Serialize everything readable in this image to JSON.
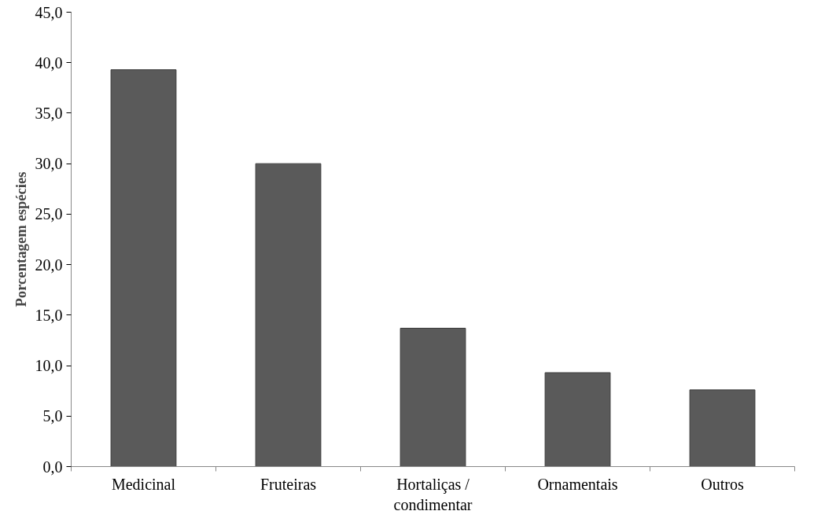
{
  "chart_data": {
    "type": "bar",
    "ylabel": "Porcentagem espécies",
    "categories": [
      "Medicinal",
      "Fruteiras",
      "Hortaliças /\ncondimentar",
      "Ornamentais",
      "Outros"
    ],
    "values": [
      39.3,
      30.0,
      13.7,
      9.3,
      7.6
    ],
    "color": "#5a5a5a",
    "ylim": [
      0,
      45
    ],
    "yticks": [
      {
        "value": 0,
        "label": "0,0"
      },
      {
        "value": 5,
        "label": "5,0"
      },
      {
        "value": 10,
        "label": "10,0"
      },
      {
        "value": 15,
        "label": "15,0"
      },
      {
        "value": 20,
        "label": "20,0"
      },
      {
        "value": 25,
        "label": "25,0"
      },
      {
        "value": 30,
        "label": "30,0"
      },
      {
        "value": 35,
        "label": "35,0"
      },
      {
        "value": 40,
        "label": "40,0"
      },
      {
        "value": 45,
        "label": "45,0"
      }
    ],
    "grid": false
  }
}
